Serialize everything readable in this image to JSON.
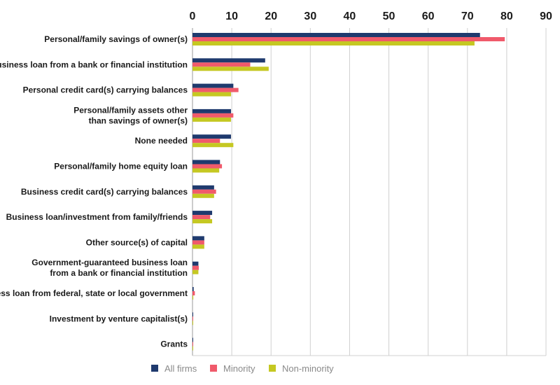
{
  "chart_data": {
    "type": "bar",
    "orientation": "horizontal",
    "title": "",
    "xlabel": "",
    "ylabel": "",
    "xlim": [
      0,
      90
    ],
    "ticks": [
      0,
      10,
      20,
      30,
      40,
      50,
      60,
      70,
      80,
      90
    ],
    "grid": true,
    "legend_position": "bottom",
    "categories": [
      [
        "Personal/family savings of owner(s)"
      ],
      [
        "Business loan from a bank or financial institution"
      ],
      [
        "Personal credit card(s) carrying balances"
      ],
      [
        "Personal/family assets other",
        "than savings of owner(s)"
      ],
      [
        "None needed"
      ],
      [
        "Personal/family home equity loan"
      ],
      [
        "Business credit card(s) carrying balances"
      ],
      [
        "Business loan/investment from family/friends"
      ],
      [
        "Other source(s) of capital"
      ],
      [
        "Government-guaranteed business loan",
        "from a bank or financial institution"
      ],
      [
        "Business loan from federal, state or local government"
      ],
      [
        "Investment by venture capitalist(s)"
      ],
      [
        "Grants"
      ]
    ],
    "series": [
      {
        "name": "All firms",
        "color": "#1f3a6e",
        "values": [
          73.2,
          18.5,
          10.4,
          9.8,
          9.8,
          7.0,
          5.5,
          5.0,
          3.0,
          1.5,
          0.3,
          0.1,
          0.1
        ]
      },
      {
        "name": "Minority",
        "color": "#f05a6b",
        "values": [
          79.5,
          14.7,
          11.7,
          10.4,
          7.0,
          7.5,
          6.0,
          4.5,
          3.0,
          1.6,
          0.6,
          0.1,
          0.1
        ]
      },
      {
        "name": "Non-minority",
        "color": "#c5c822",
        "values": [
          71.8,
          19.4,
          9.8,
          9.8,
          10.4,
          6.8,
          5.5,
          5.0,
          3.0,
          1.5,
          0.2,
          0.1,
          0.1
        ]
      }
    ]
  }
}
